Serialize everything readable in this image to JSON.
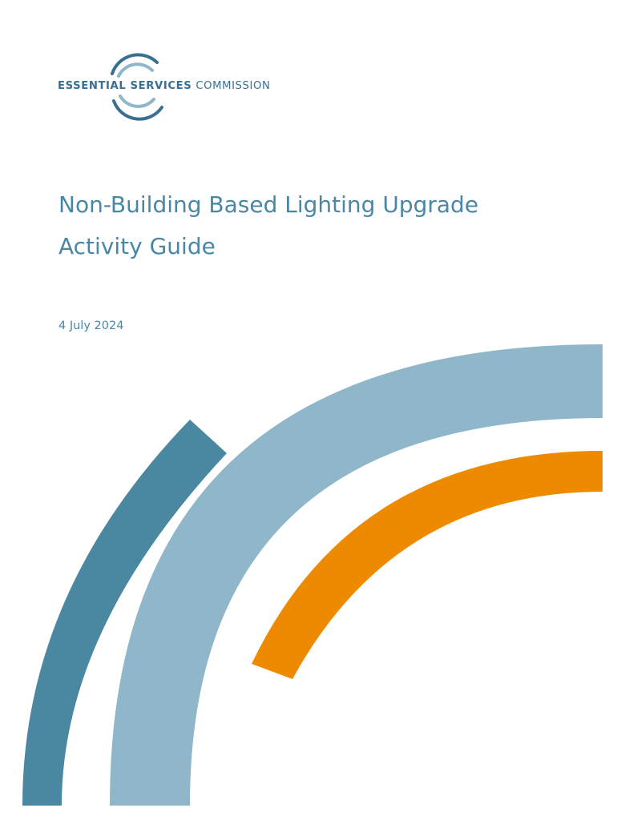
{
  "logo": {
    "name_bold": "ESSENTIAL SERVICES",
    "name_light": "COMMISSION"
  },
  "document": {
    "title_line1": "Non-Building Based Lighting Upgrade",
    "title_line2": "Activity Guide",
    "date": "4 July 2024"
  },
  "colors": {
    "brand_dark_blue": "#4a87a0",
    "brand_light_blue": "#8fb6c9",
    "brand_orange": "#ee8a00",
    "title_text": "#4a87a4",
    "logo_text": "#3a6f8f"
  }
}
